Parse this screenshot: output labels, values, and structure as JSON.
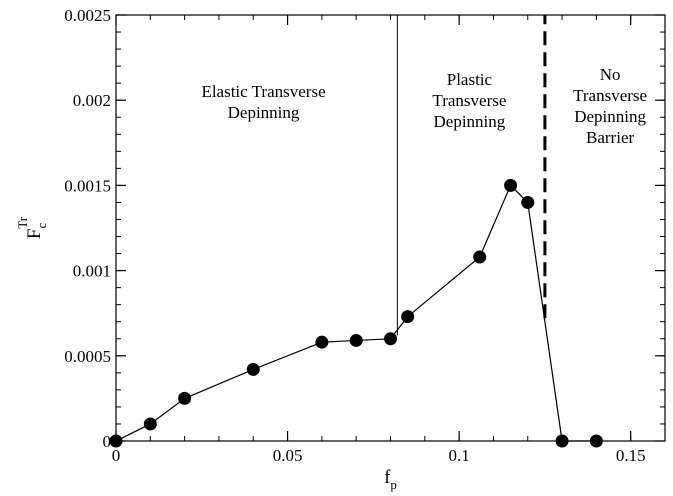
{
  "chart_data": {
    "type": "scatter",
    "title": "",
    "xlabel": "f_p",
    "ylabel": "F_c^Tr",
    "xlabel_parts": {
      "base": "f",
      "sub": "p"
    },
    "ylabel_parts": {
      "base": "F",
      "sub": "c",
      "sup": "Tr"
    },
    "xlim": [
      0,
      0.16
    ],
    "ylim": [
      0,
      0.0025
    ],
    "x_ticks": [
      {
        "value": 0,
        "label": "0"
      },
      {
        "value": 0.05,
        "label": "0.05"
      },
      {
        "value": 0.1,
        "label": "0.1"
      },
      {
        "value": 0.15,
        "label": "0.15"
      }
    ],
    "y_ticks": [
      {
        "value": 0,
        "label": "0"
      },
      {
        "value": 0.0005,
        "label": "0.0005"
      },
      {
        "value": 0.001,
        "label": "0.001"
      },
      {
        "value": 0.0015,
        "label": "0.0015"
      },
      {
        "value": 0.002,
        "label": "0.002"
      },
      {
        "value": 0.0025,
        "label": "0.0025"
      }
    ],
    "x_minor_step": 0.01,
    "y_minor_step": 0.0001,
    "grid": false,
    "series": [
      {
        "x": [
          0,
          0.01,
          0.02,
          0.04,
          0.06,
          0.07,
          0.08,
          0.085,
          0.106,
          0.115,
          0.12,
          0.13,
          0.14
        ],
        "y": [
          0,
          0.0001,
          0.00025,
          0.00042,
          0.00058,
          0.00059,
          0.0006,
          0.00073,
          0.00108,
          0.0015,
          0.0014,
          0,
          0
        ],
        "style": "line-with-circles",
        "color": "#000000"
      }
    ],
    "vertical_lines": [
      {
        "x": 0.082,
        "y_from": 0.00062,
        "y_to": 0.0025,
        "style": "solid"
      },
      {
        "x": 0.125,
        "y_from": 0.00072,
        "y_to": 0.0025,
        "style": "dashed"
      }
    ],
    "annotations": [
      {
        "lines": [
          "Elastic Transverse",
          "Depinning"
        ],
        "x": 0.043,
        "y": 0.00202
      },
      {
        "lines": [
          "Plastic",
          "Transverse",
          "Depinning"
        ],
        "x": 0.103,
        "y": 0.00209
      },
      {
        "lines": [
          "No",
          "Transverse",
          "Depinning",
          "Barrier"
        ],
        "x": 0.144,
        "y": 0.00212
      }
    ]
  }
}
